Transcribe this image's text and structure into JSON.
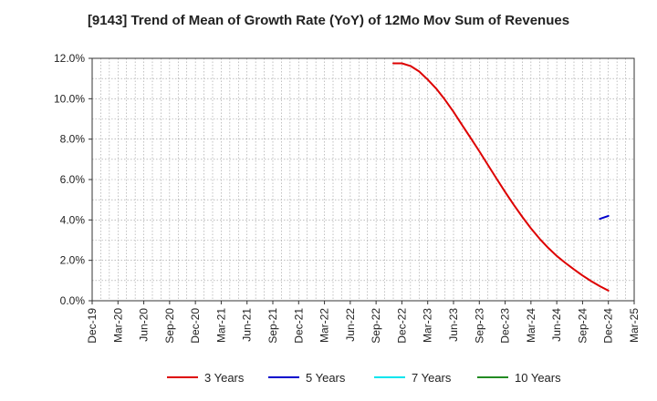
{
  "chart_data": {
    "type": "line",
    "title": "[9143]  Trend of Mean of Growth Rate (YoY) of 12Mo Mov Sum of Revenues",
    "xlabel": "",
    "ylabel": "",
    "ylim": [
      0,
      12
    ],
    "y_ticks": [
      0,
      2,
      4,
      6,
      8,
      10,
      12
    ],
    "y_tick_labels": [
      "0.0%",
      "2.0%",
      "4.0%",
      "6.0%",
      "8.0%",
      "10.0%",
      "12.0%"
    ],
    "x_tick_labels": [
      "Dec-19",
      "Mar-20",
      "Jun-20",
      "Sep-20",
      "Dec-20",
      "Mar-21",
      "Jun-21",
      "Sep-21",
      "Dec-21",
      "Mar-22",
      "Jun-22",
      "Sep-22",
      "Dec-22",
      "Mar-23",
      "Jun-23",
      "Sep-23",
      "Dec-23",
      "Mar-24",
      "Jun-24",
      "Sep-24",
      "Dec-24",
      "Mar-25"
    ],
    "x_range_months": [
      0,
      63
    ],
    "grid": true,
    "legend_position": "bottom",
    "series": [
      {
        "name": "3 Years",
        "color": "#dd0000",
        "x_months": [
          35,
          36,
          37,
          38,
          39,
          40,
          41,
          42,
          43,
          44,
          45,
          46,
          47,
          48,
          49,
          50,
          51,
          52,
          53,
          54,
          55,
          56,
          57,
          58,
          59,
          60
        ],
        "values": [
          11.75,
          11.75,
          11.62,
          11.35,
          10.95,
          10.5,
          9.95,
          9.35,
          8.7,
          8.05,
          7.4,
          6.72,
          6.05,
          5.38,
          4.75,
          4.15,
          3.58,
          3.07,
          2.62,
          2.22,
          1.87,
          1.55,
          1.25,
          0.97,
          0.72,
          0.5
        ]
      },
      {
        "name": "5 Years",
        "color": "#0000cc",
        "x_months": [
          59,
          60
        ],
        "values": [
          4.05,
          4.2
        ]
      },
      {
        "name": "7 Years",
        "color": "#00e5ee",
        "x_months": [],
        "values": []
      },
      {
        "name": "10 Years",
        "color": "#228b22",
        "x_months": [],
        "values": []
      }
    ]
  }
}
